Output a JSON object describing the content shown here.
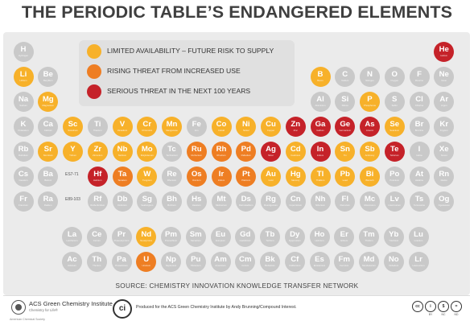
{
  "title": "THE PERIODIC TABLE’S ENDANGERED ELEMENTS",
  "colors": {
    "safe": "#c9c9c9",
    "limited": "#f7b12a",
    "rising": "#ee7e23",
    "serious": "#c52229"
  },
  "legend": [
    {
      "status": "limited",
      "label": "LIMITED AVAILABILITY – FUTURE RISK TO SUPPLY"
    },
    {
      "status": "rising",
      "label": "RISING THREAT FROM INCREASED USE"
    },
    {
      "status": "serious",
      "label": "SERIOUS THREAT IN THE NEXT 100 YEARS"
    }
  ],
  "table_elements": [
    {
      "symbol": "H",
      "name": "Hydrogen",
      "period": 1,
      "group": 1,
      "status": "safe"
    },
    {
      "symbol": "He",
      "name": "Helium",
      "period": 1,
      "group": 18,
      "status": "serious"
    },
    {
      "symbol": "Li",
      "name": "Lithium",
      "period": 2,
      "group": 1,
      "status": "limited"
    },
    {
      "symbol": "Be",
      "name": "Beryllium",
      "period": 2,
      "group": 2,
      "status": "safe"
    },
    {
      "symbol": "B",
      "name": "Boron",
      "period": 2,
      "group": 13,
      "status": "limited"
    },
    {
      "symbol": "C",
      "name": "Carbon",
      "period": 2,
      "group": 14,
      "status": "safe"
    },
    {
      "symbol": "N",
      "name": "Nitrogen",
      "period": 2,
      "group": 15,
      "status": "safe"
    },
    {
      "symbol": "O",
      "name": "Oxygen",
      "period": 2,
      "group": 16,
      "status": "safe"
    },
    {
      "symbol": "F",
      "name": "Fluorine",
      "period": 2,
      "group": 17,
      "status": "safe"
    },
    {
      "symbol": "Ne",
      "name": "Neon",
      "period": 2,
      "group": 18,
      "status": "safe"
    },
    {
      "symbol": "Na",
      "name": "Sodium",
      "period": 3,
      "group": 1,
      "status": "safe"
    },
    {
      "symbol": "Mg",
      "name": "Magnesium",
      "period": 3,
      "group": 2,
      "status": "limited"
    },
    {
      "symbol": "Al",
      "name": "Aluminium",
      "period": 3,
      "group": 13,
      "status": "safe"
    },
    {
      "symbol": "Si",
      "name": "Silicon",
      "period": 3,
      "group": 14,
      "status": "safe"
    },
    {
      "symbol": "P",
      "name": "Phosphorus",
      "period": 3,
      "group": 15,
      "status": "limited"
    },
    {
      "symbol": "S",
      "name": "Sulfur",
      "period": 3,
      "group": 16,
      "status": "safe"
    },
    {
      "symbol": "Cl",
      "name": "Chlorine",
      "period": 3,
      "group": 17,
      "status": "safe"
    },
    {
      "symbol": "Ar",
      "name": "Argon",
      "period": 3,
      "group": 18,
      "status": "safe"
    },
    {
      "symbol": "K",
      "name": "Potassium",
      "period": 4,
      "group": 1,
      "status": "safe"
    },
    {
      "symbol": "Ca",
      "name": "Calcium",
      "period": 4,
      "group": 2,
      "status": "safe"
    },
    {
      "symbol": "Sc",
      "name": "Scandium",
      "period": 4,
      "group": 3,
      "status": "limited"
    },
    {
      "symbol": "Ti",
      "name": "Titanium",
      "period": 4,
      "group": 4,
      "status": "safe"
    },
    {
      "symbol": "V",
      "name": "Vanadium",
      "period": 4,
      "group": 5,
      "status": "limited"
    },
    {
      "symbol": "Cr",
      "name": "Chromium",
      "period": 4,
      "group": 6,
      "status": "limited"
    },
    {
      "symbol": "Mn",
      "name": "Manganese",
      "period": 4,
      "group": 7,
      "status": "limited"
    },
    {
      "symbol": "Fe",
      "name": "Iron",
      "period": 4,
      "group": 8,
      "status": "safe"
    },
    {
      "symbol": "Co",
      "name": "Cobalt",
      "period": 4,
      "group": 9,
      "status": "limited"
    },
    {
      "symbol": "Ni",
      "name": "Nickel",
      "period": 4,
      "group": 10,
      "status": "limited"
    },
    {
      "symbol": "Cu",
      "name": "Copper",
      "period": 4,
      "group": 11,
      "status": "limited"
    },
    {
      "symbol": "Zn",
      "name": "Zinc",
      "period": 4,
      "group": 12,
      "status": "serious"
    },
    {
      "symbol": "Ga",
      "name": "Gallium",
      "period": 4,
      "group": 13,
      "status": "serious"
    },
    {
      "symbol": "Ge",
      "name": "Germanium",
      "period": 4,
      "group": 14,
      "status": "serious"
    },
    {
      "symbol": "As",
      "name": "Arsenic",
      "period": 4,
      "group": 15,
      "status": "serious"
    },
    {
      "symbol": "Se",
      "name": "Selenium",
      "period": 4,
      "group": 16,
      "status": "limited"
    },
    {
      "symbol": "Br",
      "name": "Bromine",
      "period": 4,
      "group": 17,
      "status": "safe"
    },
    {
      "symbol": "Kr",
      "name": "Krypton",
      "period": 4,
      "group": 18,
      "status": "safe"
    },
    {
      "symbol": "Rb",
      "name": "Rubidium",
      "period": 5,
      "group": 1,
      "status": "safe"
    },
    {
      "symbol": "Sr",
      "name": "Strontium",
      "period": 5,
      "group": 2,
      "status": "limited"
    },
    {
      "symbol": "Y",
      "name": "Yttrium",
      "period": 5,
      "group": 3,
      "status": "limited"
    },
    {
      "symbol": "Zr",
      "name": "Zirconium",
      "period": 5,
      "group": 4,
      "status": "limited"
    },
    {
      "symbol": "Nb",
      "name": "Niobium",
      "period": 5,
      "group": 5,
      "status": "limited"
    },
    {
      "symbol": "Mo",
      "name": "Molybdenum",
      "period": 5,
      "group": 6,
      "status": "limited"
    },
    {
      "symbol": "Tc",
      "name": "Technetium",
      "period": 5,
      "group": 7,
      "status": "safe"
    },
    {
      "symbol": "Ru",
      "name": "Ruthenium",
      "period": 5,
      "group": 8,
      "status": "rising"
    },
    {
      "symbol": "Rh",
      "name": "Rhodium",
      "period": 5,
      "group": 9,
      "status": "rising"
    },
    {
      "symbol": "Pd",
      "name": "Palladium",
      "period": 5,
      "group": 10,
      "status": "rising"
    },
    {
      "symbol": "Ag",
      "name": "Silver",
      "period": 5,
      "group": 11,
      "status": "serious"
    },
    {
      "symbol": "Cd",
      "name": "Cadmium",
      "period": 5,
      "group": 12,
      "status": "limited"
    },
    {
      "symbol": "In",
      "name": "Indium",
      "period": 5,
      "group": 13,
      "status": "serious"
    },
    {
      "symbol": "Sn",
      "name": "Tin",
      "period": 5,
      "group": 14,
      "status": "limited"
    },
    {
      "symbol": "Sb",
      "name": "Antimony",
      "period": 5,
      "group": 15,
      "status": "limited"
    },
    {
      "symbol": "Te",
      "name": "Tellurium",
      "period": 5,
      "group": 16,
      "status": "serious"
    },
    {
      "symbol": "I",
      "name": "Iodine",
      "period": 5,
      "group": 17,
      "status": "safe"
    },
    {
      "symbol": "Xe",
      "name": "Xenon",
      "period": 5,
      "group": 18,
      "status": "safe"
    },
    {
      "symbol": "Cs",
      "name": "Caesium",
      "period": 6,
      "group": 1,
      "status": "safe"
    },
    {
      "symbol": "Ba",
      "name": "Barium",
      "period": 6,
      "group": 2,
      "status": "safe"
    },
    {
      "symbol": "Hf",
      "name": "Hafnium",
      "period": 6,
      "group": 4,
      "status": "serious"
    },
    {
      "symbol": "Ta",
      "name": "Tantalum",
      "period": 6,
      "group": 5,
      "status": "rising"
    },
    {
      "symbol": "W",
      "name": "Tungsten",
      "period": 6,
      "group": 6,
      "status": "limited"
    },
    {
      "symbol": "Re",
      "name": "Rhenium",
      "period": 6,
      "group": 7,
      "status": "safe"
    },
    {
      "symbol": "Os",
      "name": "Osmium",
      "period": 6,
      "group": 8,
      "status": "rising"
    },
    {
      "symbol": "Ir",
      "name": "Iridium",
      "period": 6,
      "group": 9,
      "status": "rising"
    },
    {
      "symbol": "Pt",
      "name": "Platinum",
      "period": 6,
      "group": 10,
      "status": "rising"
    },
    {
      "symbol": "Au",
      "name": "Gold",
      "period": 6,
      "group": 11,
      "status": "limited"
    },
    {
      "symbol": "Hg",
      "name": "Mercury",
      "period": 6,
      "group": 12,
      "status": "limited"
    },
    {
      "symbol": "Tl",
      "name": "Thallium",
      "period": 6,
      "group": 13,
      "status": "limited"
    },
    {
      "symbol": "Pb",
      "name": "Lead",
      "period": 6,
      "group": 14,
      "status": "limited"
    },
    {
      "symbol": "Bi",
      "name": "Bismuth",
      "period": 6,
      "group": 15,
      "status": "limited"
    },
    {
      "symbol": "Po",
      "name": "Polonium",
      "period": 6,
      "group": 16,
      "status": "safe"
    },
    {
      "symbol": "At",
      "name": "Astatine",
      "period": 6,
      "group": 17,
      "status": "safe"
    },
    {
      "symbol": "Rn",
      "name": "Radon",
      "period": 6,
      "group": 18,
      "status": "safe"
    },
    {
      "symbol": "Fr",
      "name": "Francium",
      "period": 7,
      "group": 1,
      "status": "safe"
    },
    {
      "symbol": "Ra",
      "name": "Radium",
      "period": 7,
      "group": 2,
      "status": "safe"
    },
    {
      "symbol": "Rf",
      "name": "Rutherfordium",
      "period": 7,
      "group": 4,
      "status": "safe"
    },
    {
      "symbol": "Db",
      "name": "Dubnium",
      "period": 7,
      "group": 5,
      "status": "safe"
    },
    {
      "symbol": "Sg",
      "name": "Seaborgium",
      "period": 7,
      "group": 6,
      "status": "safe"
    },
    {
      "symbol": "Bh",
      "name": "Bohrium",
      "period": 7,
      "group": 7,
      "status": "safe"
    },
    {
      "symbol": "Hs",
      "name": "Hassium",
      "period": 7,
      "group": 8,
      "status": "safe"
    },
    {
      "symbol": "Mt",
      "name": "Meitnerium",
      "period": 7,
      "group": 9,
      "status": "safe"
    },
    {
      "symbol": "Ds",
      "name": "Darmstadtium",
      "period": 7,
      "group": 10,
      "status": "safe"
    },
    {
      "symbol": "Rg",
      "name": "Roentgenium",
      "period": 7,
      "group": 11,
      "status": "safe"
    },
    {
      "symbol": "Cn",
      "name": "Copernicium",
      "period": 7,
      "group": 12,
      "status": "safe"
    },
    {
      "symbol": "Nh",
      "name": "Nihonium",
      "period": 7,
      "group": 13,
      "status": "safe"
    },
    {
      "symbol": "Fl",
      "name": "Flerovium",
      "period": 7,
      "group": 14,
      "status": "safe"
    },
    {
      "symbol": "Mc",
      "name": "Moscovium",
      "period": 7,
      "group": 15,
      "status": "safe"
    },
    {
      "symbol": "Lv",
      "name": "Livermorium",
      "period": 7,
      "group": 16,
      "status": "safe"
    },
    {
      "symbol": "Ts",
      "name": "Tennessine",
      "period": 7,
      "group": 17,
      "status": "safe"
    },
    {
      "symbol": "Og",
      "name": "Oganesson",
      "period": 7,
      "group": 18,
      "status": "safe"
    }
  ],
  "f_block_elements": [
    {
      "symbol": "La",
      "name": "Lanthanum",
      "row": 1,
      "col": 1,
      "status": "safe"
    },
    {
      "symbol": "Ce",
      "name": "Cerium",
      "row": 1,
      "col": 2,
      "status": "safe"
    },
    {
      "symbol": "Pr",
      "name": "Praseodymium",
      "row": 1,
      "col": 3,
      "status": "safe"
    },
    {
      "symbol": "Nd",
      "name": "Neodymium",
      "row": 1,
      "col": 4,
      "status": "limited"
    },
    {
      "symbol": "Pm",
      "name": "Promethium",
      "row": 1,
      "col": 5,
      "status": "safe"
    },
    {
      "symbol": "Sm",
      "name": "Samarium",
      "row": 1,
      "col": 6,
      "status": "safe"
    },
    {
      "symbol": "Eu",
      "name": "Europium",
      "row": 1,
      "col": 7,
      "status": "safe"
    },
    {
      "symbol": "Gd",
      "name": "Gadolinium",
      "row": 1,
      "col": 8,
      "status": "safe"
    },
    {
      "symbol": "Tb",
      "name": "Terbium",
      "row": 1,
      "col": 9,
      "status": "safe"
    },
    {
      "symbol": "Dy",
      "name": "Dysprosium",
      "row": 1,
      "col": 10,
      "status": "safe"
    },
    {
      "symbol": "Ho",
      "name": "Holmium",
      "row": 1,
      "col": 11,
      "status": "safe"
    },
    {
      "symbol": "Er",
      "name": "Erbium",
      "row": 1,
      "col": 12,
      "status": "safe"
    },
    {
      "symbol": "Tm",
      "name": "Thulium",
      "row": 1,
      "col": 13,
      "status": "safe"
    },
    {
      "symbol": "Yb",
      "name": "Ytterbium",
      "row": 1,
      "col": 14,
      "status": "safe"
    },
    {
      "symbol": "Lu",
      "name": "Lutetium",
      "row": 1,
      "col": 15,
      "status": "safe"
    },
    {
      "symbol": "Ac",
      "name": "Actinium",
      "row": 2,
      "col": 1,
      "status": "safe"
    },
    {
      "symbol": "Th",
      "name": "Thorium",
      "row": 2,
      "col": 2,
      "status": "safe"
    },
    {
      "symbol": "Pa",
      "name": "Protactinium",
      "row": 2,
      "col": 3,
      "status": "safe"
    },
    {
      "symbol": "U",
      "name": "Uranium",
      "row": 2,
      "col": 4,
      "status": "rising"
    },
    {
      "symbol": "Np",
      "name": "Neptunium",
      "row": 2,
      "col": 5,
      "status": "safe"
    },
    {
      "symbol": "Pu",
      "name": "Plutonium",
      "row": 2,
      "col": 6,
      "status": "safe"
    },
    {
      "symbol": "Am",
      "name": "Americium",
      "row": 2,
      "col": 7,
      "status": "safe"
    },
    {
      "symbol": "Cm",
      "name": "Curium",
      "row": 2,
      "col": 8,
      "status": "safe"
    },
    {
      "symbol": "Bk",
      "name": "Berkelium",
      "row": 2,
      "col": 9,
      "status": "safe"
    },
    {
      "symbol": "Cf",
      "name": "Californium",
      "row": 2,
      "col": 10,
      "status": "safe"
    },
    {
      "symbol": "Es",
      "name": "Einsteinium",
      "row": 2,
      "col": 11,
      "status": "safe"
    },
    {
      "symbol": "Fm",
      "name": "Fermium",
      "row": 2,
      "col": 12,
      "status": "safe"
    },
    {
      "symbol": "Md",
      "name": "Mendelevium",
      "row": 2,
      "col": 13,
      "status": "safe"
    },
    {
      "symbol": "No",
      "name": "Nobelium",
      "row": 2,
      "col": 14,
      "status": "safe"
    },
    {
      "symbol": "Lr",
      "name": "Lawrencium",
      "row": 2,
      "col": 15,
      "status": "safe"
    }
  ],
  "gap_labels": {
    "lanthanides": "ES7-71",
    "actinides": "E89-103"
  },
  "source": "SOURCE: CHEMISTRY INNOVATION KNOWLEDGE TRANSFER NETWORK",
  "footer": {
    "org_title": "ACS Green Chemistry Institute",
    "org_subtitle": "Chemistry for Life®",
    "org_society": "American Chemical Society",
    "ci_logo": "ci",
    "credit": "Produced for the ACS Green Chemistry Institute by Andy Brunning/Compound Interest.",
    "license_icons": [
      {
        "icon": "cc-icon",
        "glyph": "cc",
        "caption": ""
      },
      {
        "icon": "by-icon",
        "glyph": "i",
        "caption": "BY"
      },
      {
        "icon": "nc-icon",
        "glyph": "$",
        "caption": "NC"
      },
      {
        "icon": "nd-icon",
        "glyph": "=",
        "caption": "ND"
      }
    ]
  }
}
